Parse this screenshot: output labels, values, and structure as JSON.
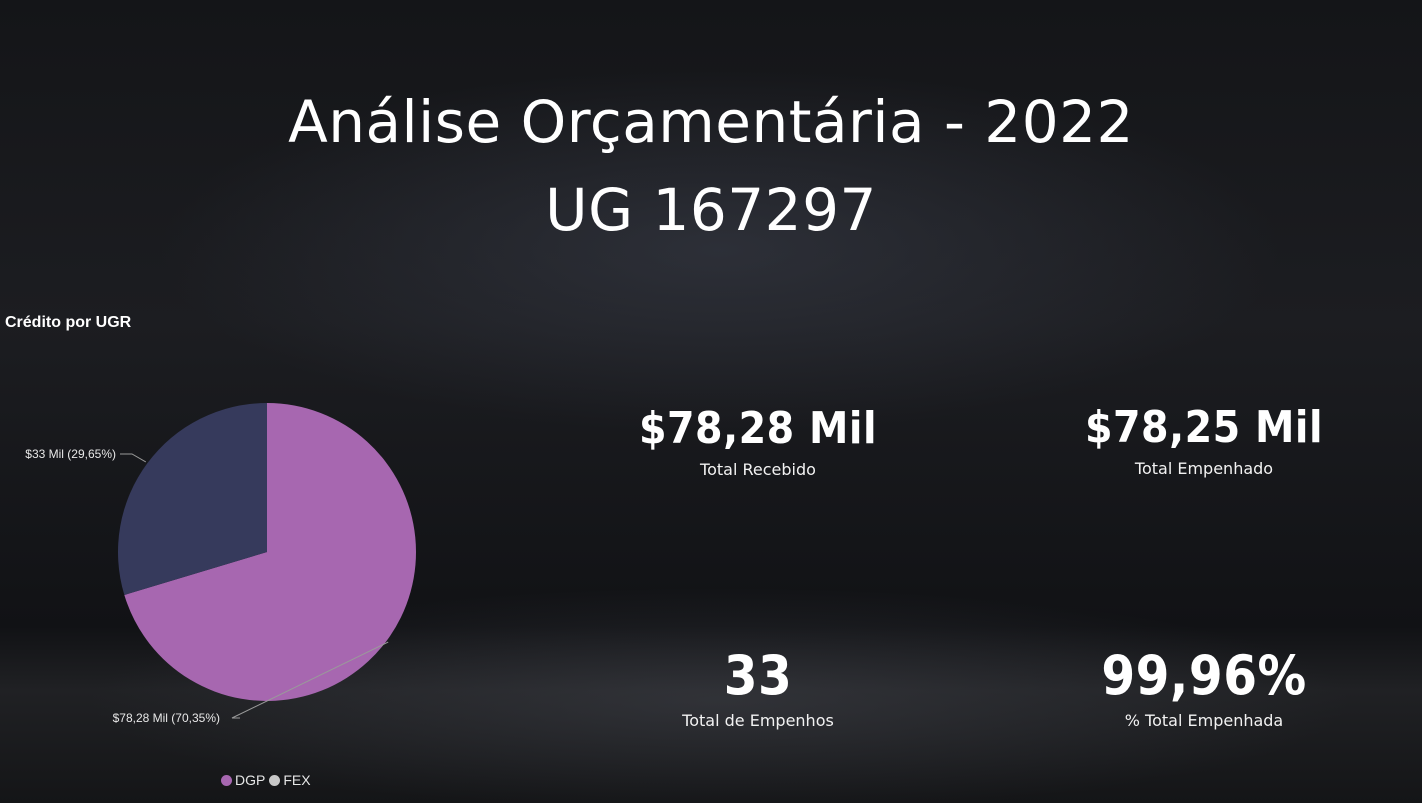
{
  "header": {
    "title_line1": "Análise Orçamentária - 2022",
    "title_line2": "UG 167297"
  },
  "kpis": [
    {
      "value": "$78,28 Mil",
      "label": "Total Recebido"
    },
    {
      "value": "$78,25 Mil",
      "label": "Total Empenhado"
    },
    {
      "value": "33",
      "label": "Total de Empenhos"
    },
    {
      "value": "99,96%",
      "label": "% Total Empenhada"
    }
  ],
  "colors": {
    "dgp": "#a767b0",
    "fex": "#363a5c",
    "fex_legend": "#c8c8c8"
  },
  "chart_data": {
    "type": "pie",
    "title": "Crédito por UGR",
    "series": [
      {
        "name": "DGP",
        "value": 78.28,
        "percent": 70.35,
        "label": "$78,28 Mil (70,35%)"
      },
      {
        "name": "FEX",
        "value": 33,
        "percent": 29.65,
        "label": "$33 Mil (29,65%)"
      }
    ],
    "legend": {
      "position": "bottom",
      "items": [
        "DGP",
        "FEX"
      ]
    }
  }
}
